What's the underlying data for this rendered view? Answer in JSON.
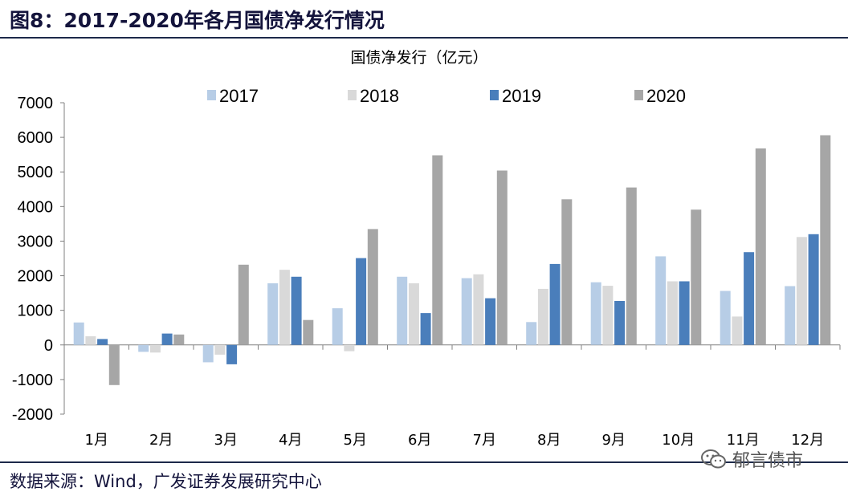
{
  "header": {
    "title": "图8：2017-2020年各月国债净发行情况"
  },
  "footer": {
    "source": "数据来源：Wind，广发证券发展研究中心",
    "watermark": "郁言债市"
  },
  "colors": {
    "s2017": "#b7cde6",
    "s2018": "#d9d9d9",
    "s2019": "#4a7ebb",
    "s2020": "#a6a6a6",
    "rule": "#1d2a4a"
  },
  "chart_data": {
    "type": "bar",
    "title": "国债净发行（亿元）",
    "xlabel": "",
    "ylabel": "",
    "ylim": [
      -2000,
      7000
    ],
    "yticks": [
      7000,
      6000,
      5000,
      4000,
      3000,
      2000,
      1000,
      0,
      -1000,
      -2000
    ],
    "grid": false,
    "legend_position": "top",
    "categories": [
      "1月",
      "2月",
      "3月",
      "4月",
      "5月",
      "6月",
      "7月",
      "8月",
      "9月",
      "10月",
      "11月",
      "12月"
    ],
    "series": [
      {
        "name": "2017",
        "values": [
          650,
          -200,
          -500,
          1780,
          1060,
          1970,
          1930,
          660,
          1810,
          2560,
          1560,
          1700
        ]
      },
      {
        "name": "2018",
        "values": [
          250,
          -220,
          -280,
          2170,
          -180,
          1780,
          2040,
          1620,
          1710,
          1840,
          820,
          3120
        ]
      },
      {
        "name": "2019",
        "values": [
          170,
          330,
          -560,
          1970,
          2510,
          920,
          1350,
          2340,
          1270,
          1840,
          2680,
          3200
        ]
      },
      {
        "name": "2020",
        "values": [
          -1160,
          300,
          2320,
          720,
          3350,
          5480,
          5040,
          4210,
          4550,
          3910,
          5680,
          6060
        ]
      }
    ]
  }
}
